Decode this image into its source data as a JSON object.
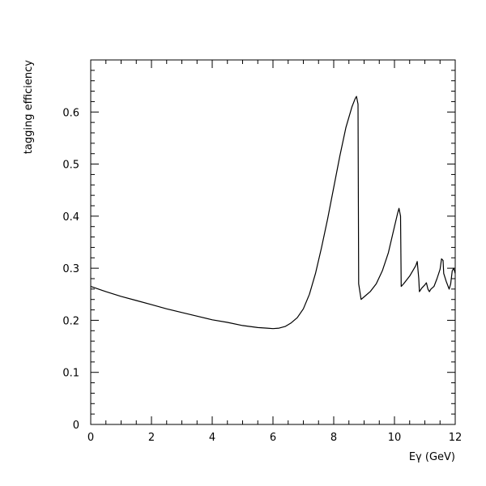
{
  "chart_data": {
    "type": "line",
    "title": "",
    "xlabel": "Eγ (GeV)",
    "ylabel": "tagging efficiency",
    "xlim": [
      0,
      12
    ],
    "ylim": [
      0,
      0.7
    ],
    "x_ticks": [
      0,
      2,
      4,
      6,
      8,
      10,
      12
    ],
    "x_tick_labels": [
      "0",
      "2",
      "4",
      "6",
      "8",
      "10",
      "12"
    ],
    "y_ticks": [
      0,
      0.1,
      0.2,
      0.3,
      0.4,
      0.5,
      0.6
    ],
    "y_tick_labels": [
      "0",
      "0.1",
      "0.2",
      "0.3",
      "0.4",
      "0.5",
      "0.6"
    ],
    "grid": false,
    "legend": "none",
    "line_color": "#000000",
    "series": [
      {
        "x": [
          0.0,
          0.5,
          1.0,
          1.5,
          2.0,
          2.5,
          3.0,
          3.5,
          4.0,
          4.5,
          5.0,
          5.5,
          5.8,
          6.0,
          6.2,
          6.4,
          6.6,
          6.8,
          7.0,
          7.2,
          7.4,
          7.6,
          7.8,
          8.0,
          8.2,
          8.4,
          8.6,
          8.7,
          8.75,
          8.8,
          8.82,
          8.9,
          9.0,
          9.2,
          9.4,
          9.6,
          9.8,
          10.0,
          10.1,
          10.15,
          10.2,
          10.22,
          10.3,
          10.5,
          10.7,
          10.75,
          10.8,
          10.82,
          10.9,
          11.0,
          11.05,
          11.1,
          11.15,
          11.2,
          11.3,
          11.4,
          11.5,
          11.55,
          11.6,
          11.62,
          11.7,
          11.8,
          11.85,
          11.9,
          11.95,
          12.0
        ],
        "y": [
          0.265,
          0.255,
          0.246,
          0.238,
          0.23,
          0.222,
          0.215,
          0.208,
          0.201,
          0.196,
          0.19,
          0.186,
          0.185,
          0.184,
          0.185,
          0.188,
          0.195,
          0.205,
          0.222,
          0.25,
          0.29,
          0.34,
          0.395,
          0.455,
          0.515,
          0.57,
          0.61,
          0.625,
          0.63,
          0.615,
          0.27,
          0.24,
          0.245,
          0.255,
          0.27,
          0.295,
          0.33,
          0.38,
          0.405,
          0.415,
          0.4,
          0.265,
          0.27,
          0.285,
          0.305,
          0.313,
          0.28,
          0.255,
          0.262,
          0.268,
          0.272,
          0.26,
          0.255,
          0.26,
          0.265,
          0.28,
          0.298,
          0.318,
          0.315,
          0.29,
          0.275,
          0.26,
          0.27,
          0.295,
          0.3,
          0.29
        ]
      }
    ]
  }
}
